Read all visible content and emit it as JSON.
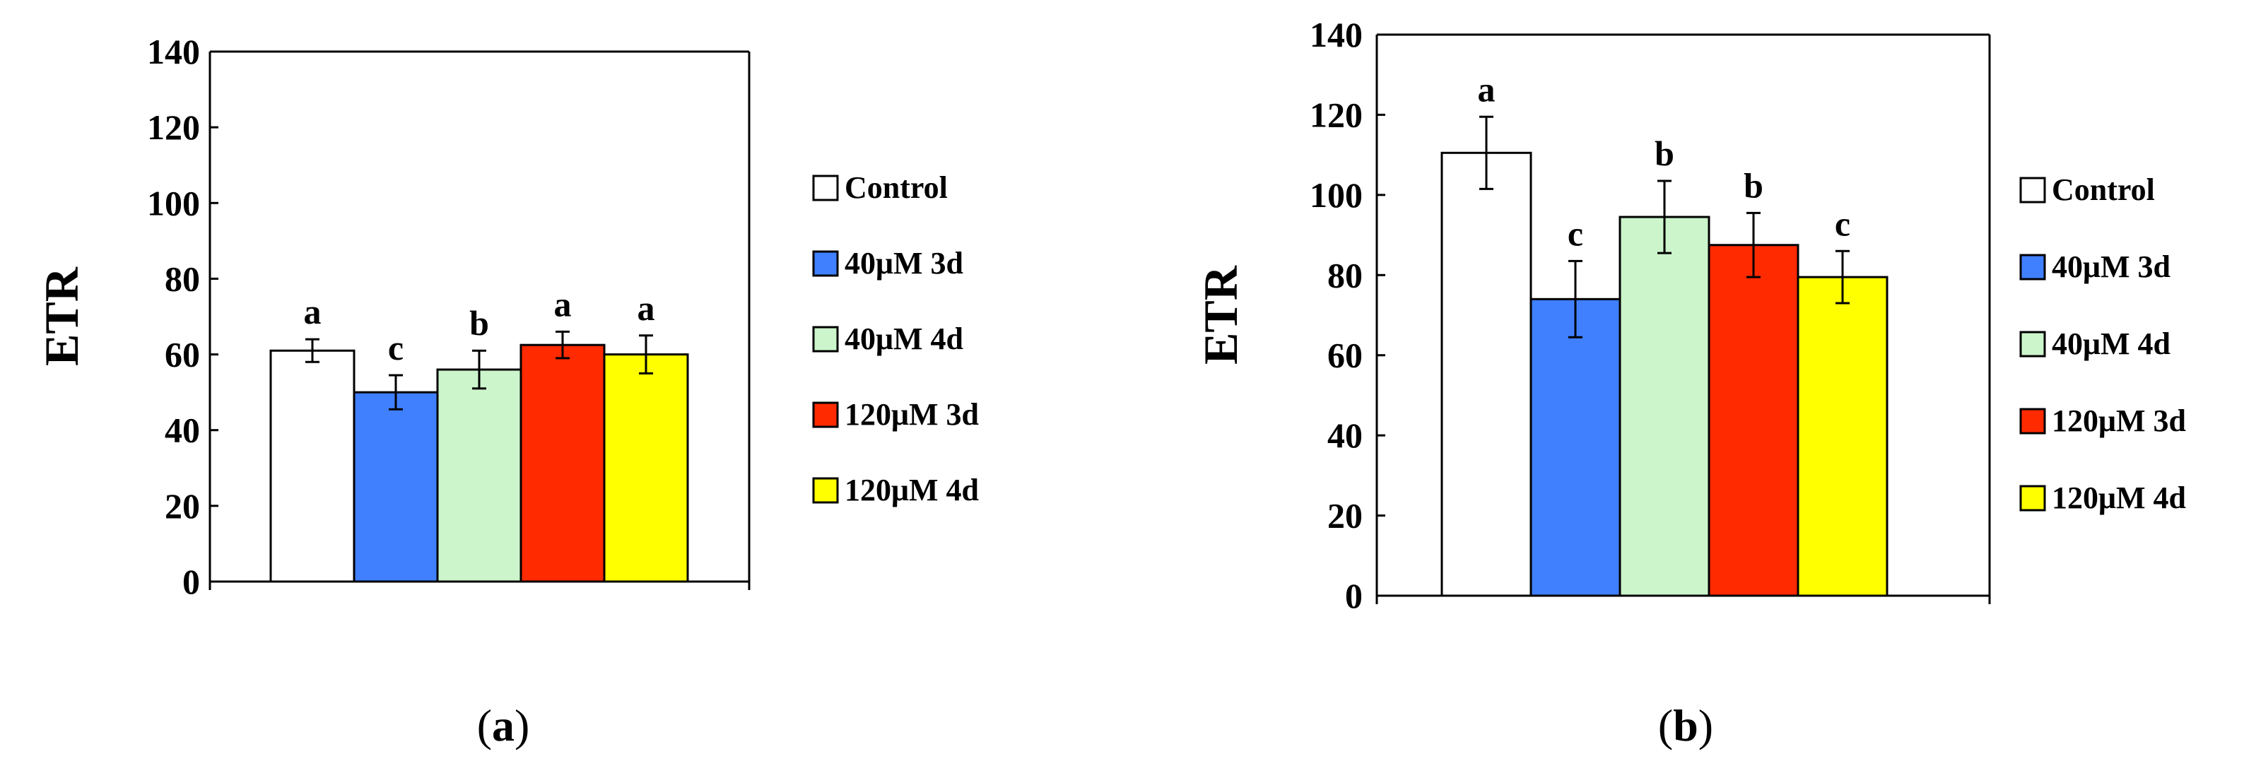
{
  "chart_data": [
    {
      "type": "bar",
      "panel_label": {
        "open": "(",
        "letter": "a",
        "close": ")"
      },
      "ylabel": "ETR",
      "ylim": [
        0,
        140
      ],
      "yticks": [
        "0",
        "20",
        "40",
        "60",
        "80",
        "100",
        "120",
        "140"
      ],
      "legend_position": "right",
      "series": [
        {
          "name": "Control",
          "value": 61,
          "error": 3,
          "sig": "a",
          "color": "#ffffff"
        },
        {
          "name": "40μM 3d",
          "value": 50,
          "error": 4.5,
          "sig": "c",
          "color": "#4080ff"
        },
        {
          "name": "40μM 4d",
          "value": 56,
          "error": 5,
          "sig": "b",
          "color": "#ccf5cc"
        },
        {
          "name": "120μM 3d",
          "value": 62.5,
          "error": 3.5,
          "sig": "a",
          "color": "#ff2a00"
        },
        {
          "name": "120μM 4d",
          "value": 60,
          "error": 5,
          "sig": "a",
          "color": "#ffff00"
        }
      ]
    },
    {
      "type": "bar",
      "panel_label": {
        "open": "(",
        "letter": "b",
        "close": ")"
      },
      "ylabel": "ETR",
      "ylim": [
        0,
        140
      ],
      "yticks": [
        "0",
        "20",
        "40",
        "60",
        "80",
        "100",
        "120",
        "140"
      ],
      "legend_position": "right",
      "series": [
        {
          "name": "Control",
          "value": 110.5,
          "error": 9,
          "sig": "a",
          "color": "#ffffff"
        },
        {
          "name": "40μM 3d",
          "value": 74,
          "error": 9.5,
          "sig": "c",
          "color": "#4080ff"
        },
        {
          "name": "40μM 4d",
          "value": 94.5,
          "error": 9,
          "sig": "b",
          "color": "#ccf5cc"
        },
        {
          "name": "120μM 3d",
          "value": 87.5,
          "error": 8,
          "sig": "b",
          "color": "#ff2a00"
        },
        {
          "name": "120μM 4d",
          "value": 79.5,
          "error": 6.5,
          "sig": "c",
          "color": "#ffff00"
        }
      ]
    }
  ]
}
